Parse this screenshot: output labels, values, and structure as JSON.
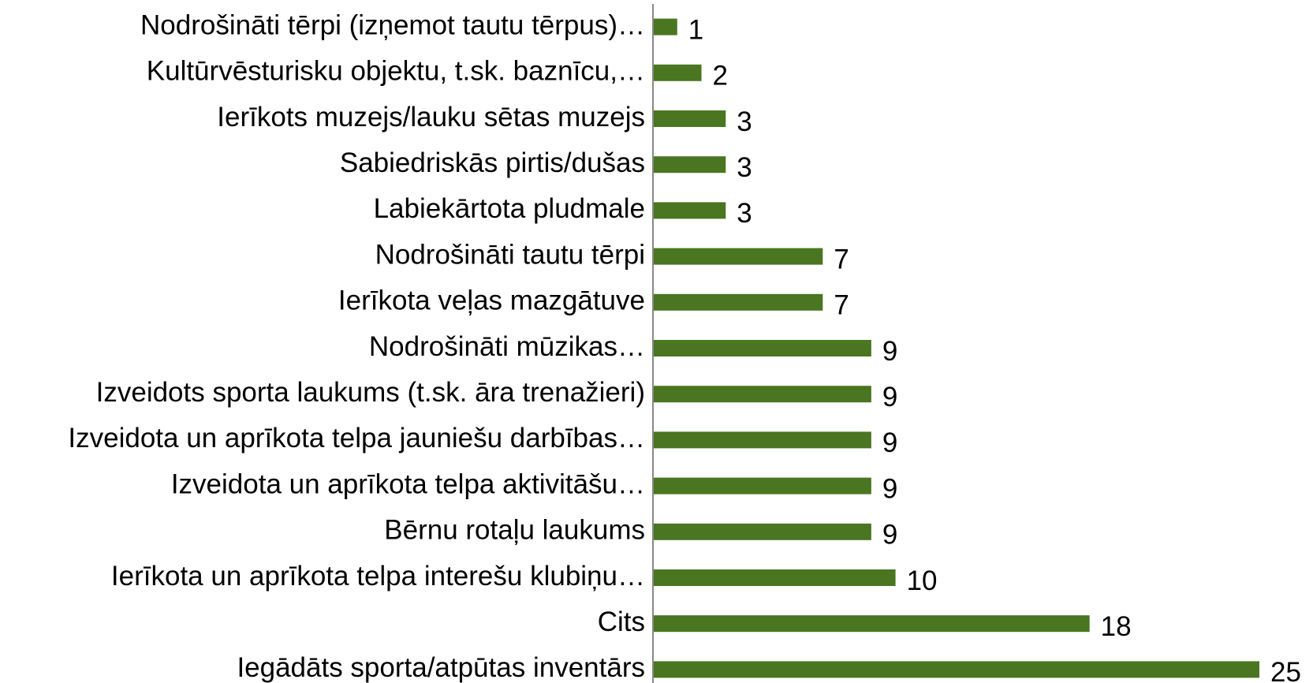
{
  "chart_data": {
    "type": "barh",
    "categories": [
      "Nodrošināti tērpi (izņemot tautu tērpus)…",
      "Kultūrvēsturisku objektu, t.sk. baznīcu,…",
      "Ierīkots muzejs/lauku sētas muzejs",
      "Sabiedriskās pirtis/dušas",
      "Labiekārtota pludmale",
      "Nodrošināti tautu tērpi",
      "Ierīkota veļas mazgātuve",
      "Nodrošināti mūzikas…",
      "Izveidots sporta laukums (t.sk. āra trenažieri)",
      "Izveidota un aprīkota telpa jauniešu darbības…",
      "Izveidota un aprīkota telpa aktivitāšu…",
      "Bērnu rotaļu laukums",
      "Ierīkota un aprīkota telpa interešu klubiņu…",
      "Cits",
      "Iegādāts sporta/atpūtas inventārs"
    ],
    "values": [
      1,
      2,
      3,
      3,
      3,
      7,
      7,
      9,
      9,
      9,
      9,
      9,
      10,
      18,
      25
    ],
    "color": "#4a7521"
  }
}
